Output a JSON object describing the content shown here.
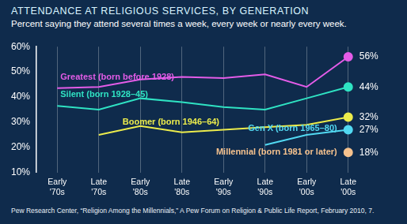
{
  "chart_data": {
    "type": "line",
    "title": "ATTENDANCE AT RELIGIOUS SERVICES, BY GENERATION",
    "subtitle": "Percent saying they attend several times a week, every week or nearly every week.",
    "source": "Pew Research Center, “Religion Among the Millennials,” A Pew Forum on Religion & Public Life Report, February 2010, 7.",
    "categories": [
      "Early '70s",
      "Late '70s",
      "Early '80s",
      "Late '80s",
      "Early '90s",
      "Late '90s",
      "Early '00s",
      "Late '00s"
    ],
    "series": [
      {
        "name": "Greatest (born before 1928)",
        "color": "#e45ce8",
        "values": [
          43.5,
          44,
          47,
          48,
          47.5,
          49,
          44,
          56
        ],
        "value_labels": [
          null,
          null,
          null,
          null,
          null,
          null,
          null,
          "56%"
        ]
      },
      {
        "name": "Silent (born 1928–45)",
        "color": "#2fe3c3",
        "values": [
          36.5,
          35,
          39.5,
          38,
          36,
          35,
          39.5,
          44
        ],
        "value_labels": [
          null,
          null,
          null,
          null,
          null,
          null,
          null,
          "44%"
        ]
      },
      {
        "name": "Boomer (born 1946–64)",
        "color": "#ecec4c",
        "values": [
          null,
          25,
          28.5,
          26,
          27,
          28,
          29,
          32
        ],
        "value_labels": [
          null,
          null,
          null,
          null,
          null,
          null,
          null,
          "32%"
        ]
      },
      {
        "name": "Gen X (born 1965–80)",
        "color": "#52d9f2",
        "values": [
          null,
          null,
          null,
          null,
          null,
          21,
          25,
          27
        ],
        "value_labels": [
          null,
          null,
          null,
          null,
          null,
          null,
          null,
          "27%"
        ]
      },
      {
        "name": "Millennial (born 1981 or later)",
        "color": "#f6c28e",
        "values": [
          null,
          null,
          null,
          null,
          null,
          null,
          null,
          18
        ],
        "value_labels": [
          null,
          null,
          null,
          null,
          null,
          null,
          null,
          "18%"
        ]
      }
    ],
    "ylim": [
      10,
      60
    ],
    "yticks": [
      {
        "value": 10,
        "label": "10%"
      },
      {
        "value": 20,
        "label": "20%"
      },
      {
        "value": 30,
        "label": "30%"
      },
      {
        "value": 40,
        "label": "40%"
      },
      {
        "value": 50,
        "label": "50%"
      },
      {
        "value": 60,
        "label": "60%"
      }
    ],
    "grid": true,
    "data_labels": true,
    "marker": "circle"
  }
}
